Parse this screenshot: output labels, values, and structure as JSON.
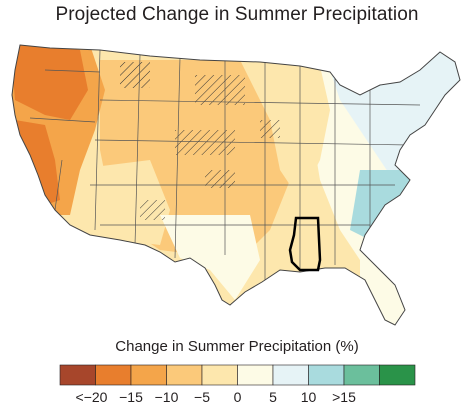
{
  "title": "Projected Change in Summer Precipitation",
  "legend": {
    "title": "Change in Summer Precipitation (%)",
    "bins": [
      {
        "color": "#a7462b",
        "label": "<−20"
      },
      {
        "color": "#e87e2d",
        "label": "−15"
      },
      {
        "color": "#f4a54a",
        "label": "−10"
      },
      {
        "color": "#fbc97a",
        "label": "−5"
      },
      {
        "color": "#fde7ad",
        "label": "0"
      },
      {
        "color": "#fdfbe6",
        "label": "5"
      },
      {
        "color": "#e6f3f6",
        "label": "10"
      },
      {
        "color": "#a9dbde",
        "label": ">15"
      },
      {
        "color": "#6bbf9c",
        "label": ""
      },
      {
        "color": "#2a9349",
        "label": ""
      }
    ]
  },
  "map_colors": {
    "strong_drying": "#e87e2d",
    "moderate_drying": "#f4a54a",
    "light_drying": "#fbc97a",
    "slight_drying": "#fde7ad",
    "no_change": "#fdfbe6",
    "slight_wetting": "#e6f3f6",
    "moderate_wetting": "#a9dbde"
  },
  "highlighted_state": "Mississippi"
}
